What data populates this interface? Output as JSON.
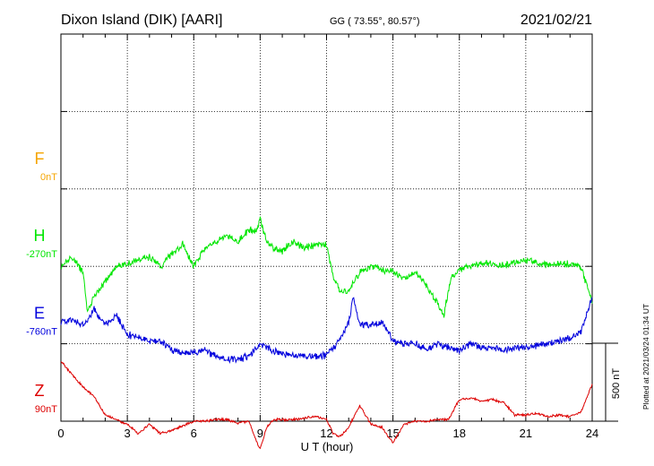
{
  "header": {
    "station": "Dixon Island (DIK)  [AARI]",
    "coords": "GG ( 73.55°,  80.57°)",
    "date": "2021/02/21"
  },
  "side_note": "Plotted at 2021/03/24 01:34 UT",
  "scale_bar": {
    "label": "500 nT",
    "value_nT": 500
  },
  "colors": {
    "F": "#f5a500",
    "H": "#00e600",
    "E": "#0000dd",
    "Z": "#dd0000"
  },
  "chart_data": {
    "type": "line",
    "xlabel": "U T (hour)",
    "xlim": [
      0,
      24
    ],
    "xticks": [
      0,
      3,
      6,
      9,
      12,
      15,
      18,
      21,
      24
    ],
    "nT_per_division": 250,
    "series": [
      {
        "name": "F",
        "offset_label": "0nT",
        "baseline_division": 2,
        "x": [],
        "values": []
      },
      {
        "name": "H",
        "offset_label": "-270nT",
        "baseline_division": 3,
        "x": [
          0,
          0.5,
          1.0,
          1.2,
          1.3,
          1.5,
          2.0,
          2.5,
          3.0,
          3.5,
          4.0,
          4.5,
          5.0,
          5.5,
          6.0,
          6.5,
          7.0,
          7.5,
          8.0,
          8.5,
          8.8,
          9.0,
          9.3,
          9.6,
          10.0,
          10.5,
          11.0,
          11.5,
          12.0,
          12.3,
          12.6,
          13.0,
          13.5,
          14.0,
          14.5,
          15.0,
          15.5,
          16.0,
          16.5,
          17.0,
          17.3,
          17.6,
          18.0,
          18.5,
          19.0,
          19.5,
          20.0,
          21.0,
          22.0,
          23.0,
          23.5,
          24.0
        ],
        "values": [
          0,
          30,
          -20,
          -150,
          -130,
          -100,
          -50,
          0,
          10,
          20,
          30,
          0,
          40,
          70,
          0,
          60,
          80,
          100,
          80,
          120,
          110,
          150,
          80,
          60,
          50,
          80,
          60,
          70,
          70,
          -30,
          -80,
          -80,
          -20,
          0,
          -10,
          -20,
          -40,
          -20,
          -60,
          -120,
          -160,
          -40,
          -10,
          0,
          10,
          5,
          5,
          20,
          5,
          10,
          0,
          -120
        ]
      },
      {
        "name": "E",
        "offset_label": "-760nT",
        "baseline_division": 4,
        "x": [
          0,
          0.5,
          1.0,
          1.5,
          2.0,
          2.5,
          3.0,
          3.5,
          4.0,
          4.5,
          5.0,
          5.5,
          6.0,
          6.5,
          7.0,
          7.5,
          8.0,
          8.5,
          9.0,
          9.5,
          10.0,
          10.5,
          11.0,
          11.5,
          12.0,
          12.5,
          13.0,
          13.2,
          13.5,
          14.0,
          14.5,
          15.0,
          15.5,
          16.0,
          16.5,
          17.0,
          17.5,
          18.0,
          18.5,
          19.0,
          20.0,
          21.0,
          22.0,
          23.0,
          23.5,
          24.0
        ],
        "values": [
          70,
          80,
          60,
          110,
          60,
          90,
          30,
          20,
          10,
          10,
          -20,
          -30,
          -30,
          -20,
          -40,
          -50,
          -50,
          -40,
          0,
          -20,
          -30,
          -40,
          -40,
          -40,
          -40,
          0,
          70,
          150,
          60,
          60,
          70,
          10,
          0,
          0,
          -20,
          0,
          -10,
          -20,
          0,
          -10,
          -20,
          -10,
          0,
          20,
          40,
          150
        ]
      },
      {
        "name": "Z",
        "offset_label": "90nT",
        "baseline_division": 5,
        "x": [
          0,
          0.5,
          1.0,
          1.5,
          2.0,
          2.5,
          3.0,
          3.5,
          4.0,
          4.5,
          5.0,
          5.5,
          6.0,
          6.5,
          7.0,
          7.5,
          8.0,
          8.5,
          8.8,
          9.0,
          9.3,
          9.6,
          10.0,
          10.5,
          11.0,
          11.5,
          12.0,
          12.3,
          12.6,
          13.0,
          13.5,
          14.0,
          14.5,
          15.0,
          15.5,
          16.0,
          16.5,
          17.0,
          17.5,
          18.0,
          18.5,
          19.0,
          19.5,
          20.0,
          20.5,
          21.0,
          21.5,
          22.0,
          22.5,
          23.0,
          23.5,
          24.0
        ],
        "values": [
          195,
          150,
          110,
          80,
          20,
          5,
          -10,
          -40,
          -10,
          -40,
          -30,
          -15,
          0,
          0,
          5,
          5,
          -5,
          0,
          -60,
          -90,
          -20,
          5,
          5,
          5,
          10,
          15,
          5,
          -40,
          -50,
          -20,
          50,
          -10,
          -20,
          -70,
          -10,
          0,
          0,
          5,
          5,
          70,
          75,
          65,
          70,
          60,
          20,
          20,
          25,
          15,
          20,
          15,
          30,
          120
        ]
      }
    ]
  }
}
